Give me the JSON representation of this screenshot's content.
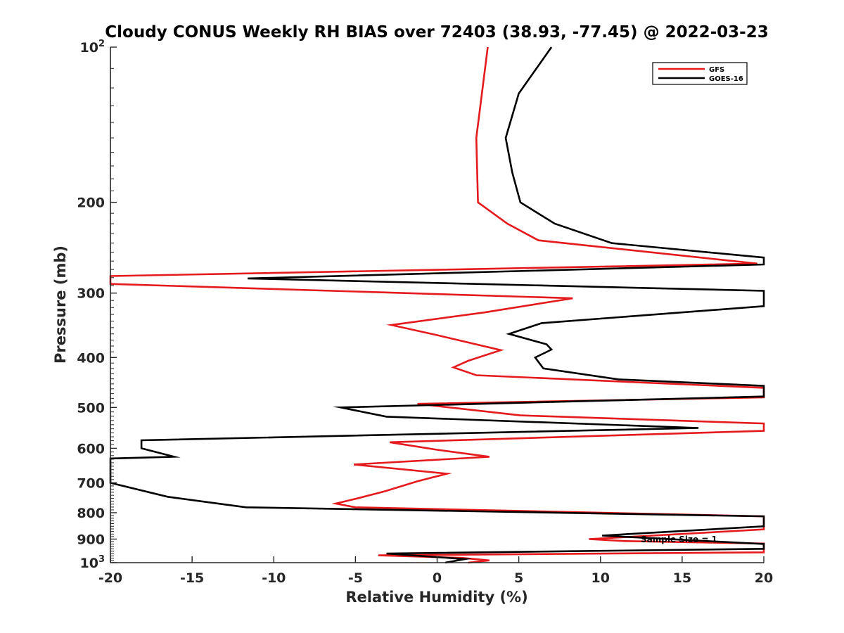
{
  "chart_data": {
    "type": "line",
    "title": "Cloudy CONUS Weekly RH BIAS over 72403 (38.93, -77.45) @ 2022-03-23",
    "xlabel": "Relative Humidity (%)",
    "ylabel": "Pressure (mb)",
    "xlim": [
      -20,
      20
    ],
    "ylim": [
      100,
      1000
    ],
    "y_scale": "log",
    "y_reversed": true,
    "x_ticks": [
      "-20",
      "-15",
      "-10",
      "-5",
      "0",
      "5",
      "10",
      "15",
      "20"
    ],
    "y_ticks": [
      {
        "value": 100,
        "label": "10",
        "sup": "2"
      },
      {
        "value": 200,
        "label": "200",
        "sup": ""
      },
      {
        "value": 300,
        "label": "300",
        "sup": ""
      },
      {
        "value": 400,
        "label": "400",
        "sup": ""
      },
      {
        "value": 500,
        "label": "500",
        "sup": ""
      },
      {
        "value": 600,
        "label": "600",
        "sup": ""
      },
      {
        "value": 700,
        "label": "700",
        "sup": ""
      },
      {
        "value": 800,
        "label": "800",
        "sup": ""
      },
      {
        "value": 900,
        "label": "900",
        "sup": ""
      },
      {
        "value": 1000,
        "label": "10",
        "sup": "3"
      }
    ],
    "grid": false,
    "legend_position": "top-right",
    "annotation": "Sample Size = 1",
    "series": [
      {
        "name": "GFS",
        "color": "#e41a1c",
        "points": [
          [
            3.1,
            100
          ],
          [
            2.4,
            150
          ],
          [
            2.5,
            200
          ],
          [
            4.3,
            220
          ],
          [
            6.2,
            237
          ],
          [
            19.6,
            263
          ],
          [
            -20.0,
            278
          ],
          [
            -20.0,
            288
          ],
          [
            8.3,
            307
          ],
          [
            2.9,
            327
          ],
          [
            -2.8,
            346
          ],
          [
            0.0,
            362
          ],
          [
            3.9,
            387
          ],
          [
            1.9,
            406
          ],
          [
            1.0,
            418
          ],
          [
            2.4,
            433
          ],
          [
            20.0,
            458
          ],
          [
            20.0,
            478
          ],
          [
            -1.2,
            492
          ],
          [
            5.1,
            518
          ],
          [
            20.0,
            537
          ],
          [
            20.0,
            555
          ],
          [
            -2.9,
            584
          ],
          [
            0.0,
            604
          ],
          [
            3.2,
            623
          ],
          [
            -5.1,
            645
          ],
          [
            0.6,
            672
          ],
          [
            -1.2,
            695
          ],
          [
            -3.2,
            727
          ],
          [
            -5.0,
            752
          ],
          [
            -6.2,
            768
          ],
          [
            -5.0,
            781
          ],
          [
            20.0,
            813
          ],
          [
            20.0,
            862
          ],
          [
            9.3,
            900
          ],
          [
            11.5,
            908
          ],
          [
            20.0,
            918
          ],
          [
            20.0,
            955
          ],
          [
            -3.6,
            968
          ],
          [
            1.5,
            979
          ],
          [
            3.2,
            990
          ],
          [
            1.9,
            1000
          ]
        ]
      },
      {
        "name": "GOES-16",
        "color": "#000000",
        "points": [
          [
            7.0,
            100
          ],
          [
            5.0,
            123
          ],
          [
            4.2,
            150
          ],
          [
            4.6,
            175
          ],
          [
            5.1,
            200
          ],
          [
            7.2,
            220
          ],
          [
            10.7,
            240
          ],
          [
            20.0,
            256
          ],
          [
            20.0,
            264
          ],
          [
            -11.6,
            281
          ],
          [
            20.0,
            297
          ],
          [
            20.0,
            318
          ],
          [
            6.4,
            343
          ],
          [
            4.4,
            360
          ],
          [
            6.7,
            377
          ],
          [
            7.0,
            386
          ],
          [
            6.0,
            400
          ],
          [
            6.5,
            420
          ],
          [
            11.1,
            441
          ],
          [
            20.0,
            454
          ],
          [
            20.0,
            476
          ],
          [
            -5.9,
            500
          ],
          [
            -3.1,
            521
          ],
          [
            16.0,
            548
          ],
          [
            -18.1,
            579
          ],
          [
            -18.1,
            600
          ],
          [
            -16.1,
            623
          ],
          [
            -20.0,
            628
          ],
          [
            -20.0,
            700
          ],
          [
            -16.5,
            745
          ],
          [
            -11.7,
            781
          ],
          [
            20.0,
            813
          ],
          [
            20.0,
            850
          ],
          [
            10.1,
            886
          ],
          [
            20.0,
            920
          ],
          [
            20.0,
            940
          ],
          [
            -3.1,
            960
          ],
          [
            1.7,
            984
          ],
          [
            0.5,
            1000
          ]
        ]
      }
    ]
  }
}
